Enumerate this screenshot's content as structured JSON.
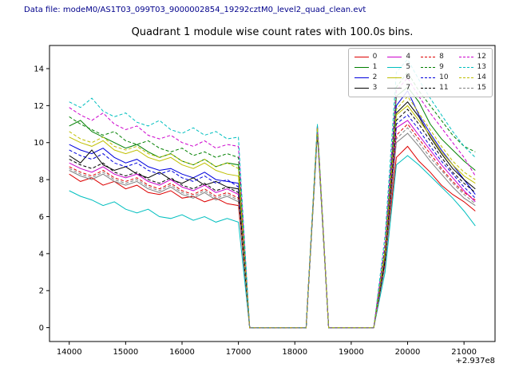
{
  "header": {
    "data_file_label": "Data file: modeM0/AS1T03_099T03_9000002854_19292cztM0_level2_quad_clean.evt"
  },
  "colors": {
    "header_text": "#00008b",
    "axis": "#000000"
  },
  "chart_data": {
    "type": "line",
    "title": "Quadrant 1 module wise count rates with 100.0s bins.",
    "xlabel": "",
    "ylabel": "",
    "x_offset_label": "+2.937e8",
    "legend_position": "upper right",
    "grid": false,
    "xlim": [
      13650,
      21550
    ],
    "ylim": [
      -0.75,
      15.25
    ],
    "xticks": [
      14000,
      15000,
      16000,
      17000,
      18000,
      19000,
      20000,
      21000
    ],
    "yticks": [
      0,
      2,
      4,
      6,
      8,
      10,
      12,
      14
    ],
    "x": [
      14000,
      14200,
      14400,
      14600,
      14800,
      15000,
      15200,
      15400,
      15600,
      15800,
      16000,
      16200,
      16400,
      16600,
      16800,
      17000,
      17200,
      17400,
      17600,
      17800,
      18000,
      18200,
      18400,
      18600,
      18800,
      19000,
      19200,
      19400,
      19600,
      19800,
      20000,
      20200,
      20400,
      20600,
      20800,
      21000,
      21200
    ],
    "series": [
      {
        "name": "0",
        "color": "#dd0000",
        "dash": "solid",
        "values": [
          8.3,
          7.9,
          8.1,
          7.7,
          7.9,
          7.5,
          7.7,
          7.3,
          7.2,
          7.4,
          7.0,
          7.1,
          6.8,
          7.0,
          6.7,
          6.6,
          0,
          0,
          0,
          0,
          0,
          0,
          10.8,
          0,
          0,
          0,
          0,
          0,
          3.5,
          9.2,
          9.8,
          9.0,
          8.4,
          7.7,
          7.2,
          6.8,
          6.3
        ]
      },
      {
        "name": "1",
        "color": "#008000",
        "dash": "solid",
        "values": [
          10.9,
          11.2,
          10.6,
          10.3,
          10.0,
          9.7,
          9.9,
          9.5,
          9.2,
          9.4,
          9.0,
          8.8,
          9.1,
          8.7,
          8.9,
          8.8,
          0,
          0,
          0,
          0,
          0,
          0,
          10.9,
          0,
          0,
          0,
          0,
          0,
          4.2,
          12.5,
          13.0,
          12.2,
          11.0,
          10.2,
          9.6,
          9.0,
          8.5
        ]
      },
      {
        "name": "2",
        "color": "#0000dd",
        "dash": "solid",
        "values": [
          9.9,
          9.6,
          9.4,
          9.7,
          9.2,
          8.9,
          9.1,
          8.7,
          8.5,
          8.6,
          8.3,
          8.1,
          8.4,
          8.0,
          7.9,
          7.8,
          0,
          0,
          0,
          0,
          0,
          0,
          10.8,
          0,
          0,
          0,
          0,
          0,
          4.0,
          12.0,
          12.8,
          11.5,
          10.5,
          9.6,
          8.8,
          8.0,
          7.2
        ]
      },
      {
        "name": "3",
        "color": "#000000",
        "dash": "solid",
        "values": [
          9.3,
          8.9,
          9.6,
          8.8,
          8.5,
          8.7,
          8.3,
          8.1,
          8.4,
          8.0,
          7.8,
          8.1,
          7.7,
          7.9,
          7.6,
          7.5,
          0,
          0,
          0,
          0,
          0,
          0,
          10.7,
          0,
          0,
          0,
          0,
          0,
          3.8,
          11.6,
          12.2,
          11.4,
          10.3,
          9.4,
          8.6,
          8.0,
          7.5
        ]
      },
      {
        "name": "4",
        "color": "#cc00cc",
        "dash": "solid",
        "values": [
          8.9,
          8.6,
          8.4,
          8.7,
          8.3,
          8.1,
          8.3,
          7.9,
          7.7,
          8.0,
          7.6,
          7.4,
          7.7,
          7.3,
          7.5,
          7.2,
          0,
          0,
          0,
          0,
          0,
          0,
          10.6,
          0,
          0,
          0,
          0,
          0,
          3.6,
          10.8,
          11.2,
          10.4,
          9.6,
          8.8,
          8.1,
          7.4,
          6.8
        ]
      },
      {
        "name": "5",
        "color": "#00bfbf",
        "dash": "solid",
        "values": [
          7.4,
          7.1,
          6.9,
          6.6,
          6.8,
          6.4,
          6.2,
          6.4,
          6.0,
          5.9,
          6.1,
          5.8,
          6.0,
          5.7,
          5.9,
          5.7,
          0,
          0,
          0,
          0,
          0,
          0,
          10.5,
          0,
          0,
          0,
          0,
          0,
          3.0,
          8.8,
          9.3,
          8.8,
          8.2,
          7.6,
          7.0,
          6.3,
          5.5
        ]
      },
      {
        "name": "6",
        "color": "#bfbf00",
        "dash": "solid",
        "values": [
          10.3,
          10.0,
          9.8,
          10.1,
          9.6,
          9.4,
          9.6,
          9.2,
          9.0,
          9.2,
          8.8,
          8.6,
          8.9,
          8.5,
          8.3,
          8.2,
          0,
          0,
          0,
          0,
          0,
          0,
          10.8,
          0,
          0,
          0,
          0,
          0,
          4.0,
          11.5,
          12.0,
          11.2,
          10.4,
          9.5,
          8.8,
          8.2,
          7.8
        ]
      },
      {
        "name": "7",
        "color": "#808080",
        "dash": "solid",
        "values": [
          8.5,
          8.2,
          8.0,
          8.3,
          7.9,
          7.7,
          7.9,
          7.5,
          7.3,
          7.6,
          7.2,
          7.0,
          7.3,
          6.9,
          7.1,
          6.8,
          0,
          0,
          0,
          0,
          0,
          0,
          10.6,
          0,
          0,
          0,
          0,
          0,
          3.4,
          10.0,
          10.5,
          9.8,
          9.0,
          8.3,
          7.6,
          7.0,
          6.6
        ]
      },
      {
        "name": "8",
        "color": "#dd0000",
        "dash": "dashed",
        "values": [
          8.7,
          8.4,
          8.2,
          8.5,
          8.1,
          7.9,
          8.1,
          7.7,
          7.5,
          7.8,
          7.4,
          7.2,
          7.5,
          7.1,
          7.3,
          7.0,
          0,
          0,
          0,
          0,
          0,
          0,
          10.7,
          0,
          0,
          0,
          0,
          0,
          3.5,
          10.4,
          11.0,
          10.2,
          9.4,
          8.6,
          7.9,
          7.3,
          6.9
        ]
      },
      {
        "name": "9",
        "color": "#008000",
        "dash": "dashed",
        "values": [
          11.4,
          11.0,
          10.7,
          10.4,
          10.6,
          10.1,
          9.9,
          10.1,
          9.7,
          9.5,
          9.7,
          9.3,
          9.5,
          9.2,
          9.4,
          9.2,
          0,
          0,
          0,
          0,
          0,
          0,
          10.9,
          0,
          0,
          0,
          0,
          0,
          4.5,
          13.0,
          13.8,
          12.8,
          12.0,
          11.2,
          10.4,
          9.8,
          9.5
        ]
      },
      {
        "name": "10",
        "color": "#0000dd",
        "dash": "dashed",
        "values": [
          9.6,
          9.3,
          9.1,
          9.4,
          8.9,
          8.7,
          8.9,
          8.5,
          8.3,
          8.5,
          8.1,
          7.9,
          8.2,
          7.8,
          8.0,
          7.6,
          0,
          0,
          0,
          0,
          0,
          0,
          10.7,
          0,
          0,
          0,
          0,
          0,
          3.7,
          11.0,
          11.5,
          10.7,
          9.8,
          9.0,
          8.3,
          7.6,
          7.0
        ]
      },
      {
        "name": "11",
        "color": "#000000",
        "dash": "dashed",
        "values": [
          9.1,
          8.8,
          8.6,
          8.9,
          8.4,
          8.2,
          8.4,
          8.0,
          7.8,
          8.1,
          7.7,
          7.5,
          7.8,
          7.4,
          7.6,
          7.3,
          0,
          0,
          0,
          0,
          0,
          0,
          10.6,
          0,
          0,
          0,
          0,
          0,
          3.6,
          11.2,
          11.8,
          11.0,
          10.1,
          9.2,
          8.4,
          7.8,
          7.3
        ]
      },
      {
        "name": "12",
        "color": "#cc00cc",
        "dash": "dashed",
        "values": [
          11.9,
          11.5,
          11.2,
          11.6,
          11.0,
          10.7,
          10.9,
          10.4,
          10.2,
          10.4,
          10.0,
          9.8,
          10.1,
          9.7,
          9.9,
          9.8,
          0,
          0,
          0,
          0,
          0,
          0,
          10.9,
          0,
          0,
          0,
          0,
          0,
          4.6,
          12.8,
          13.5,
          12.5,
          11.6,
          10.8,
          10.0,
          9.2,
          8.2
        ]
      },
      {
        "name": "13",
        "color": "#00bfbf",
        "dash": "dashed",
        "values": [
          12.2,
          11.9,
          12.4,
          11.7,
          11.4,
          11.6,
          11.1,
          10.9,
          11.2,
          10.7,
          10.5,
          10.8,
          10.4,
          10.6,
          10.2,
          10.3,
          0,
          0,
          0,
          0,
          0,
          0,
          11.0,
          0,
          0,
          0,
          0,
          0,
          5.0,
          13.8,
          14.5,
          13.4,
          12.4,
          11.5,
          10.6,
          9.8,
          9.2
        ]
      },
      {
        "name": "14",
        "color": "#bfbf00",
        "dash": "dashed",
        "values": [
          10.6,
          10.2,
          10.0,
          10.3,
          9.8,
          9.6,
          9.8,
          9.4,
          9.2,
          9.4,
          9.0,
          8.8,
          9.1,
          8.7,
          8.9,
          8.6,
          0,
          0,
          0,
          0,
          0,
          0,
          10.8,
          0,
          0,
          0,
          0,
          0,
          4.1,
          11.8,
          12.5,
          11.6,
          10.7,
          9.8,
          9.0,
          8.4,
          8.0
        ]
      },
      {
        "name": "15",
        "color": "#808080",
        "dash": "dashed",
        "values": [
          8.6,
          8.3,
          8.1,
          8.4,
          8.0,
          7.8,
          8.0,
          7.6,
          7.4,
          7.7,
          7.3,
          7.1,
          7.4,
          7.0,
          7.2,
          6.9,
          0,
          0,
          0,
          0,
          0,
          0,
          10.5,
          0,
          0,
          0,
          0,
          0,
          3.3,
          10.2,
          10.8,
          10.0,
          9.2,
          8.5,
          7.8,
          7.2,
          6.7
        ]
      }
    ]
  }
}
